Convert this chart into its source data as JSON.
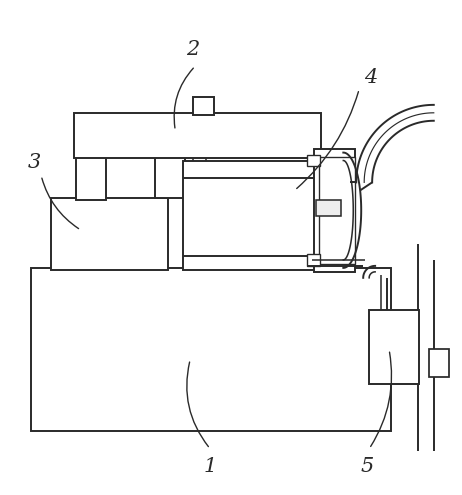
{
  "background_color": "#ffffff",
  "line_color": "#2a2a2a",
  "line_width": 1.4,
  "fig_width": 4.62,
  "fig_height": 4.95,
  "dpi": 100,
  "label_fontsize": 15
}
